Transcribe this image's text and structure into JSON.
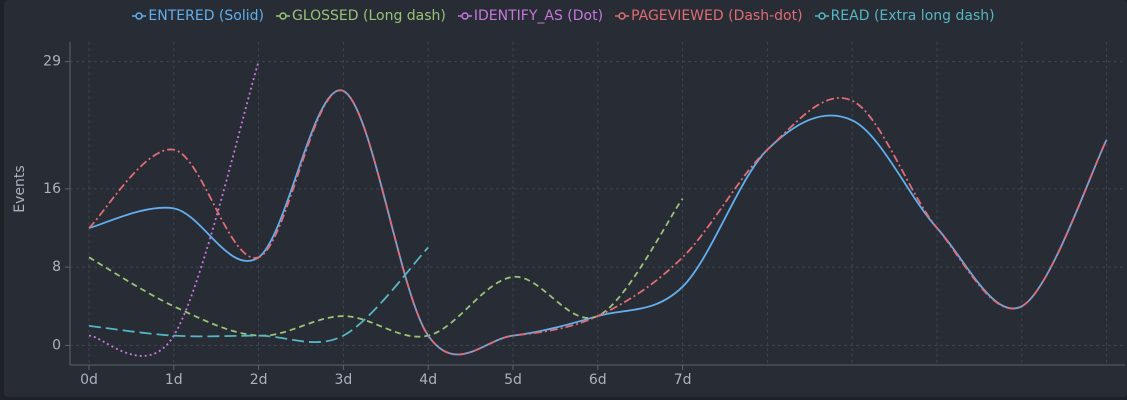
{
  "chart_data": {
    "type": "line",
    "ylabel": "Events",
    "categories": [
      "0d",
      "1d",
      "2d",
      "3d",
      "4d",
      "5d",
      "6d",
      "7d",
      null,
      null,
      null,
      null,
      null
    ],
    "ylim": [
      -2,
      31
    ],
    "yticks": [
      0,
      8,
      16,
      29
    ],
    "grid": true,
    "legend": "top",
    "series": [
      {
        "name": "ENTERED (Solid)",
        "color": "#61afef",
        "style": "solid",
        "values": [
          12,
          14,
          9,
          26,
          1,
          1,
          3,
          6,
          20,
          23,
          12,
          4,
          21
        ]
      },
      {
        "name": "GLOSSED (Long dash)",
        "color": "#98c379",
        "style": "longdash",
        "values": [
          9,
          4,
          1,
          3,
          1,
          7,
          3,
          15,
          null,
          null,
          null,
          null,
          null
        ]
      },
      {
        "name": "IDENTIFY_AS (Dot)",
        "color": "#c678dd",
        "style": "dot",
        "values": [
          1,
          1,
          29,
          null,
          null,
          null,
          null,
          null,
          null,
          null,
          null,
          null,
          null
        ]
      },
      {
        "name": "PAGEVIEWED (Dash-dot)",
        "color": "#e06c75",
        "style": "dashdot",
        "values": [
          12,
          20,
          9,
          26,
          1,
          1,
          3,
          9,
          20,
          25,
          12,
          4,
          21
        ]
      },
      {
        "name": "READ (Extra long dash)",
        "color": "#56b6c2",
        "style": "xlongdash",
        "values": [
          2,
          1,
          1,
          1,
          10,
          null,
          null,
          null,
          null,
          null,
          null,
          null,
          null
        ]
      }
    ]
  }
}
